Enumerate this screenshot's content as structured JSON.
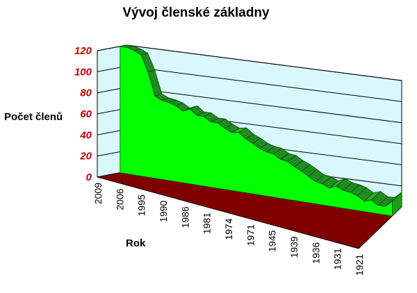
{
  "chart_data": {
    "type": "area",
    "title": "Vývoj členské základny",
    "xlabel": "Rok",
    "ylabel": "Počet členů",
    "ylim": [
      0,
      120
    ],
    "yticks": [
      "0",
      "20",
      "40",
      "60",
      "80",
      "100",
      "120"
    ],
    "categories": [
      "2009",
      "2006",
      "1995",
      "1990",
      "1986",
      "1981",
      "1974",
      "1971",
      "1945",
      "1939",
      "1936",
      "1931",
      "1921"
    ],
    "series_points": [
      {
        "year": "2009",
        "value": 120
      },
      {
        "year": "2008",
        "value": 120
      },
      {
        "year": "2007",
        "value": 118
      },
      {
        "year": "2006",
        "value": 115
      },
      {
        "year": "2000",
        "value": 100
      },
      {
        "year": "1997",
        "value": 78
      },
      {
        "year": "1995",
        "value": 75
      },
      {
        "year": "1993",
        "value": 74
      },
      {
        "year": "1992",
        "value": 72
      },
      {
        "year": "1990",
        "value": 68
      },
      {
        "year": "1988",
        "value": 71
      },
      {
        "year": "1987",
        "value": 66
      },
      {
        "year": "1986",
        "value": 66
      },
      {
        "year": "1984",
        "value": 62
      },
      {
        "year": "1982",
        "value": 62
      },
      {
        "year": "1981",
        "value": 58
      },
      {
        "year": "1978",
        "value": 55
      },
      {
        "year": "1976",
        "value": 56
      },
      {
        "year": "1974",
        "value": 51
      },
      {
        "year": "1973",
        "value": 48
      },
      {
        "year": "1972",
        "value": 44
      },
      {
        "year": "1971",
        "value": 42
      },
      {
        "year": "1950",
        "value": 41
      },
      {
        "year": "1948",
        "value": 37
      },
      {
        "year": "1945",
        "value": 36
      },
      {
        "year": "1943",
        "value": 32
      },
      {
        "year": "1941",
        "value": 29
      },
      {
        "year": "1939",
        "value": 25
      },
      {
        "year": "1938",
        "value": 21
      },
      {
        "year": "1937",
        "value": 20
      },
      {
        "year": "1936",
        "value": 17
      },
      {
        "year": "1935",
        "value": 20
      },
      {
        "year": "1933",
        "value": 17
      },
      {
        "year": "1931",
        "value": 16
      },
      {
        "year": "1929",
        "value": 14
      },
      {
        "year": "1927",
        "value": 10
      },
      {
        "year": "1925",
        "value": 12
      },
      {
        "year": "1923",
        "value": 8
      },
      {
        "year": "1922",
        "value": 8
      },
      {
        "year": "1921",
        "value": 14
      }
    ],
    "grid": true,
    "view": "3d",
    "colors": {
      "area_front": "#00ff00",
      "area_top": "#1f8c1f",
      "wall": "#d8f8fc",
      "floor": "#800000",
      "grid": "#000000"
    }
  }
}
